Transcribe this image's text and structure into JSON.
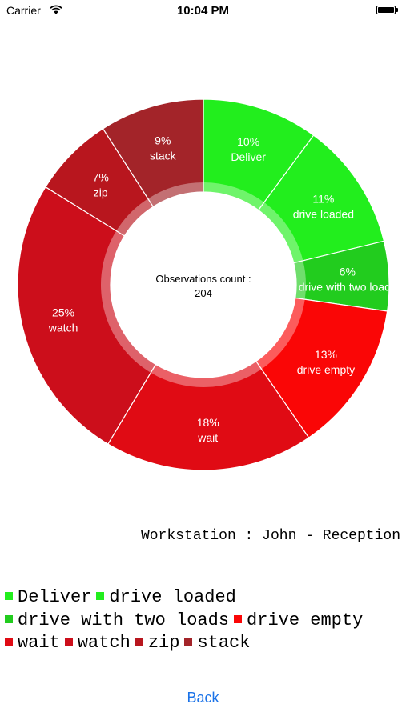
{
  "status_bar": {
    "carrier": "Carrier",
    "time": "10:04 PM"
  },
  "chart_data": {
    "type": "pie",
    "style": "donut",
    "center_title": "Observations count :",
    "center_value": "204",
    "categories": [
      "Deliver",
      "drive loaded",
      "drive with two loads",
      "drive empty",
      "wait",
      "watch",
      "zip",
      "stack"
    ],
    "values": [
      10,
      11,
      6,
      13,
      18,
      25,
      7,
      9
    ],
    "labels": [
      "10%",
      "11%",
      "6%",
      "13%",
      "18%",
      "25%",
      "7%",
      "9%"
    ],
    "colors": [
      "#22ee1d",
      "#22ee1d",
      "#22cc1e",
      "#fa0606",
      "#e00b14",
      "#cc0e1b",
      "#b8161e",
      "#a32429"
    ],
    "legend_position": "bottom"
  },
  "workstation": "Workstation : John - Reception",
  "back_label": "Back"
}
